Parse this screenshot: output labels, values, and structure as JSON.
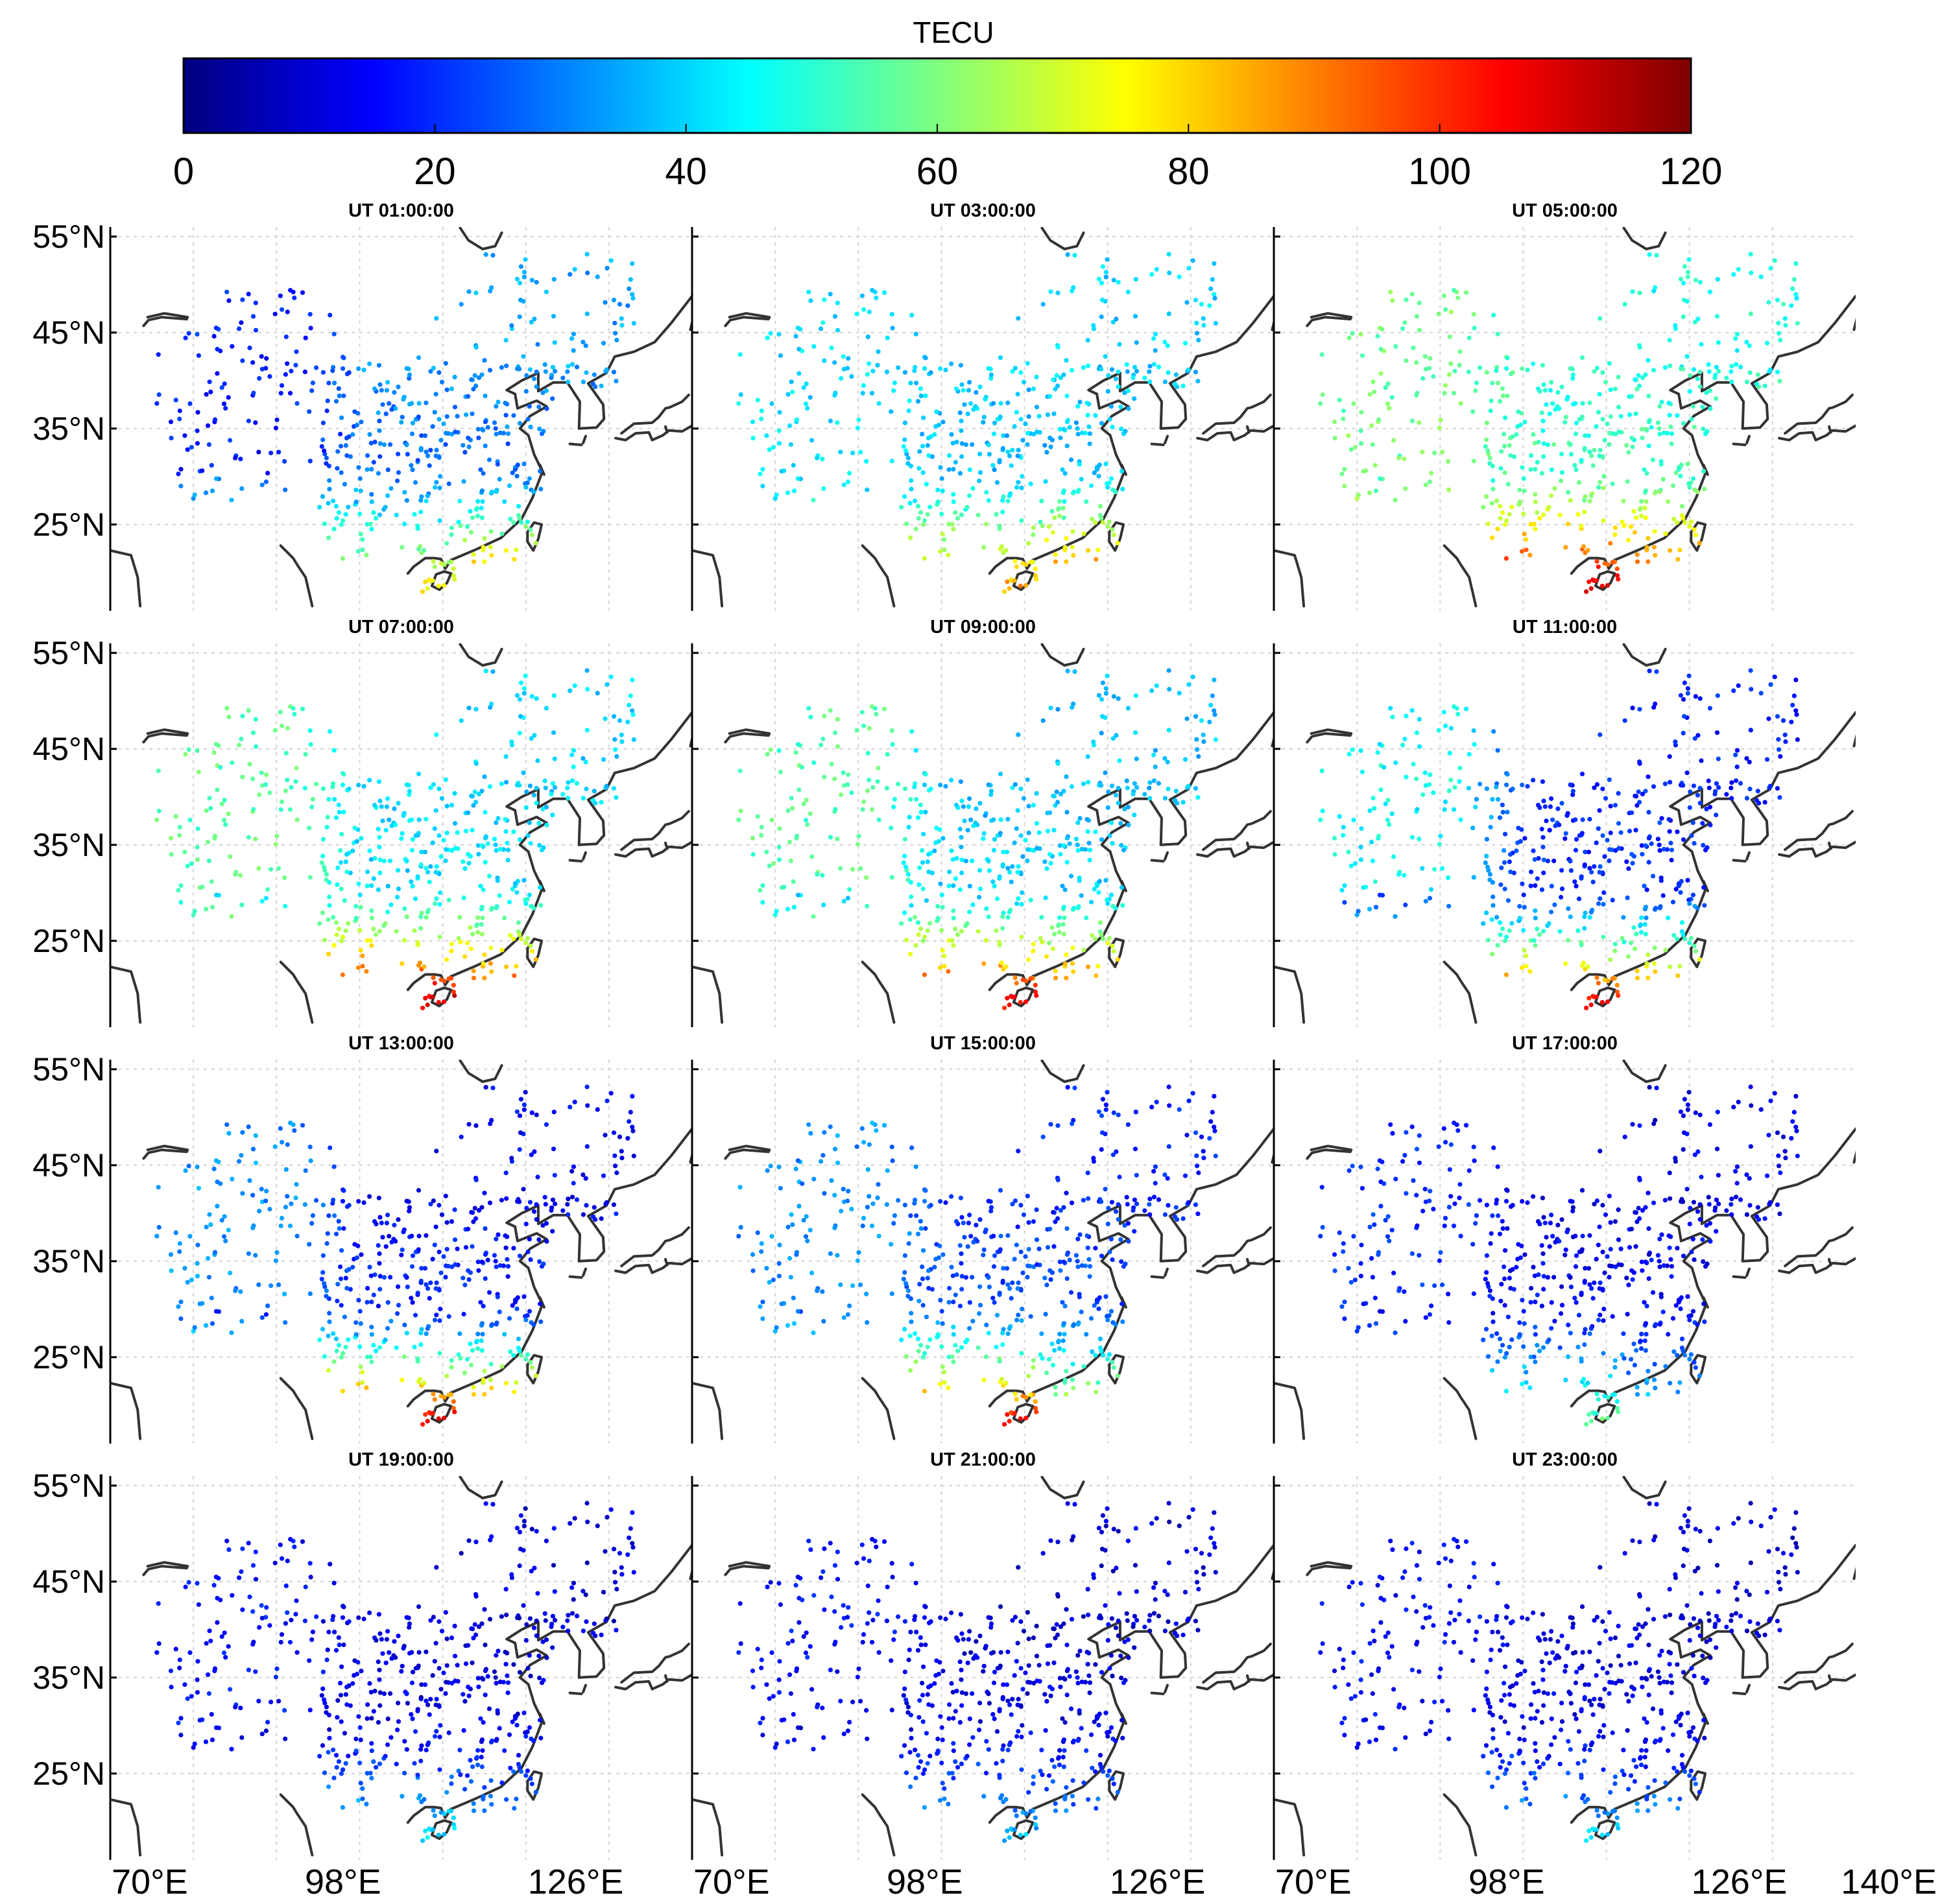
{
  "chart_data": {
    "type": "scatter",
    "figure": "Ionospheric total electron content maps over China",
    "colorbar": {
      "title": "TECU",
      "range": [
        0,
        120
      ],
      "ticks": [
        "0",
        "20",
        "40",
        "60",
        "80",
        "100",
        "120"
      ],
      "colors": [
        "#00007f",
        "#0000ff",
        "#007fff",
        "#00ffff",
        "#7fff7f",
        "#ffff00",
        "#ff7f00",
        "#ff0000",
        "#7f0000"
      ]
    },
    "axes": {
      "lon_range": [
        70,
        140
      ],
      "lat_range": [
        16,
        56
      ],
      "lat_ticks": [
        "55°N",
        "45°N",
        "35°N",
        "25°N"
      ],
      "lat_values": [
        55,
        45,
        35,
        25
      ],
      "lon_ticks": [
        "70°E",
        "98°E",
        "126°E"
      ],
      "lon_values": [
        70,
        98,
        126
      ],
      "lon_end_label": "140°E"
    },
    "panels": [
      {
        "title": "UT 01:00:00",
        "tec": {
          "west": 18,
          "north": 34,
          "center": 28,
          "south": 75,
          "southeast": 92
        }
      },
      {
        "title": "UT 03:00:00",
        "tec": {
          "west": 42,
          "north": 40,
          "center": 38,
          "south": 85,
          "southeast": 100
        }
      },
      {
        "title": "UT 05:00:00",
        "tec": {
          "west": 58,
          "north": 48,
          "center": 52,
          "south": 108,
          "southeast": 100
        }
      },
      {
        "title": "UT 07:00:00",
        "tec": {
          "west": 56,
          "north": 40,
          "center": 42,
          "south": 110,
          "southeast": 105
        }
      },
      {
        "title": "UT 09:00:00",
        "tec": {
          "west": 55,
          "north": 38,
          "center": 40,
          "south": 105,
          "southeast": 100
        }
      },
      {
        "title": "UT 11:00:00",
        "tec": {
          "west": 46,
          "north": 18,
          "center": 20,
          "south": 105,
          "southeast": 100
        }
      },
      {
        "title": "UT 13:00:00",
        "tec": {
          "west": 32,
          "north": 14,
          "center": 18,
          "south": 105,
          "southeast": 100
        }
      },
      {
        "title": "UT 15:00:00",
        "tec": {
          "west": 32,
          "north": 18,
          "center": 24,
          "south": 100,
          "southeast": 75
        }
      },
      {
        "title": "UT 17:00:00",
        "tec": {
          "west": 20,
          "north": 12,
          "center": 14,
          "south": 55,
          "southeast": 42
        }
      },
      {
        "title": "UT 19:00:00",
        "tec": {
          "west": 16,
          "north": 10,
          "center": 12,
          "south": 42,
          "southeast": 36
        }
      },
      {
        "title": "UT 21:00:00",
        "tec": {
          "west": 16,
          "north": 10,
          "center": 12,
          "south": 36,
          "southeast": 32
        }
      },
      {
        "title": "UT 23:00:00",
        "tec": {
          "west": 15,
          "north": 10,
          "center": 12,
          "south": 38,
          "southeast": 34
        }
      }
    ]
  }
}
